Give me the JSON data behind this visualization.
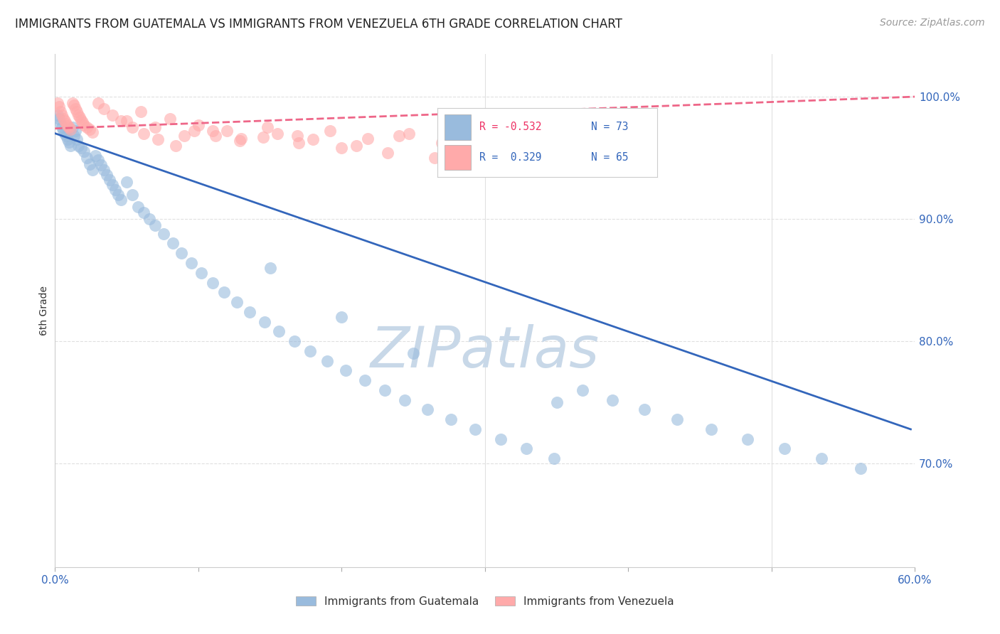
{
  "title": "IMMIGRANTS FROM GUATEMALA VS IMMIGRANTS FROM VENEZUELA 6TH GRADE CORRELATION CHART",
  "source": "Source: ZipAtlas.com",
  "ylabel": "6th Grade",
  "ytick_values": [
    1.0,
    0.9,
    0.8,
    0.7
  ],
  "ytick_labels": [
    "100.0%",
    "90.0%",
    "80.0%",
    "70.0%"
  ],
  "xlim": [
    0.0,
    0.6
  ],
  "ylim": [
    0.615,
    1.035
  ],
  "xtick_positions": [
    0.0,
    0.1,
    0.2,
    0.3,
    0.4,
    0.5,
    0.6
  ],
  "xtick_labels_show": [
    "0.0%",
    "",
    "",
    "",
    "",
    "",
    "60.0%"
  ],
  "watermark": "ZIPatlas",
  "blue_scatter_x": [
    0.002,
    0.003,
    0.004,
    0.005,
    0.006,
    0.007,
    0.008,
    0.009,
    0.01,
    0.011,
    0.012,
    0.013,
    0.014,
    0.015,
    0.016,
    0.018,
    0.02,
    0.022,
    0.024,
    0.026,
    0.028,
    0.03,
    0.032,
    0.034,
    0.036,
    0.038,
    0.04,
    0.042,
    0.044,
    0.046,
    0.05,
    0.054,
    0.058,
    0.062,
    0.066,
    0.07,
    0.076,
    0.082,
    0.088,
    0.095,
    0.102,
    0.11,
    0.118,
    0.127,
    0.136,
    0.146,
    0.156,
    0.167,
    0.178,
    0.19,
    0.203,
    0.216,
    0.23,
    0.244,
    0.26,
    0.276,
    0.293,
    0.311,
    0.329,
    0.348,
    0.368,
    0.389,
    0.411,
    0.434,
    0.458,
    0.483,
    0.509,
    0.535,
    0.562,
    0.15,
    0.2,
    0.25,
    0.35
  ],
  "blue_scatter_y": [
    0.985,
    0.982,
    0.978,
    0.975,
    0.972,
    0.97,
    0.968,
    0.965,
    0.963,
    0.96,
    0.975,
    0.968,
    0.972,
    0.965,
    0.96,
    0.958,
    0.955,
    0.95,
    0.945,
    0.94,
    0.952,
    0.948,
    0.944,
    0.94,
    0.936,
    0.932,
    0.928,
    0.924,
    0.92,
    0.916,
    0.93,
    0.92,
    0.91,
    0.905,
    0.9,
    0.895,
    0.888,
    0.88,
    0.872,
    0.864,
    0.856,
    0.848,
    0.84,
    0.832,
    0.824,
    0.816,
    0.808,
    0.8,
    0.792,
    0.784,
    0.776,
    0.768,
    0.76,
    0.752,
    0.744,
    0.736,
    0.728,
    0.72,
    0.712,
    0.704,
    0.76,
    0.752,
    0.744,
    0.736,
    0.728,
    0.72,
    0.712,
    0.704,
    0.696,
    0.86,
    0.82,
    0.79,
    0.75
  ],
  "pink_scatter_x": [
    0.002,
    0.003,
    0.004,
    0.005,
    0.006,
    0.007,
    0.008,
    0.009,
    0.01,
    0.011,
    0.012,
    0.013,
    0.014,
    0.015,
    0.016,
    0.017,
    0.018,
    0.019,
    0.02,
    0.022,
    0.024,
    0.026,
    0.03,
    0.034,
    0.04,
    0.046,
    0.054,
    0.062,
    0.072,
    0.084,
    0.097,
    0.112,
    0.129,
    0.148,
    0.169,
    0.192,
    0.218,
    0.247,
    0.279,
    0.314,
    0.352,
    0.393,
    0.05,
    0.07,
    0.09,
    0.11,
    0.13,
    0.155,
    0.18,
    0.21,
    0.24,
    0.27,
    0.3,
    0.33,
    0.36,
    0.06,
    0.08,
    0.1,
    0.12,
    0.145,
    0.17,
    0.2,
    0.232,
    0.265,
    0.3
  ],
  "pink_scatter_y": [
    0.995,
    0.992,
    0.988,
    0.985,
    0.982,
    0.98,
    0.978,
    0.976,
    0.975,
    0.973,
    0.995,
    0.993,
    0.99,
    0.988,
    0.985,
    0.983,
    0.981,
    0.979,
    0.977,
    0.975,
    0.973,
    0.971,
    0.995,
    0.99,
    0.985,
    0.98,
    0.975,
    0.97,
    0.965,
    0.96,
    0.972,
    0.968,
    0.964,
    0.975,
    0.968,
    0.972,
    0.966,
    0.97,
    0.965,
    0.96,
    0.968,
    0.962,
    0.98,
    0.975,
    0.968,
    0.972,
    0.966,
    0.97,
    0.965,
    0.96,
    0.968,
    0.962,
    0.965,
    0.96,
    0.955,
    0.988,
    0.982,
    0.977,
    0.972,
    0.967,
    0.962,
    0.958,
    0.954,
    0.95,
    0.946
  ],
  "blue_color": "#99BBDD",
  "pink_color": "#FFAAAA",
  "blue_line_color": "#3366BB",
  "pink_line_color": "#EE6688",
  "blue_line_x": [
    0.0,
    0.597
  ],
  "blue_line_y": [
    0.97,
    0.728
  ],
  "pink_line_x": [
    0.0,
    0.6
  ],
  "pink_line_y": [
    0.974,
    1.0
  ],
  "grid_color": "#E0E0E0",
  "grid_style": "--",
  "background_color": "#FFFFFF",
  "title_fontsize": 12,
  "source_fontsize": 10,
  "watermark_color": "#C8D8E8",
  "watermark_fontsize": 58,
  "legend_items": [
    {
      "color": "#99BBDD",
      "r": "R = -0.532",
      "n": "N = 73"
    },
    {
      "color": "#FFAAAA",
      "r": "R =  0.329",
      "n": "N = 65"
    }
  ],
  "legend_text_color": "#3366BB",
  "legend_r_color": "#EE3366",
  "bottom_legend": [
    "Immigrants from Guatemala",
    "Immigrants from Venezuela"
  ]
}
